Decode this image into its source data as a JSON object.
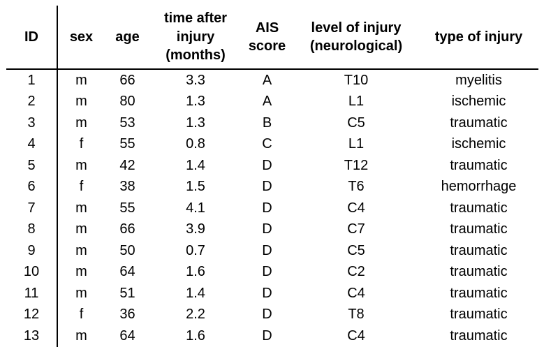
{
  "table": {
    "columns": [
      {
        "key": "id",
        "label": "ID"
      },
      {
        "key": "sex",
        "label": "sex"
      },
      {
        "key": "age",
        "label": "age"
      },
      {
        "key": "time",
        "label": "time after injury (months)"
      },
      {
        "key": "ais",
        "label": "AIS score"
      },
      {
        "key": "level",
        "label": "level of injury (neurological)"
      },
      {
        "key": "type",
        "label": "type of injury"
      }
    ],
    "rows": [
      [
        "1",
        "m",
        "66",
        "3.3",
        "A",
        "T10",
        "myelitis"
      ],
      [
        "2",
        "m",
        "80",
        "1.3",
        "A",
        "L1",
        "ischemic"
      ],
      [
        "3",
        "m",
        "53",
        "1.3",
        "B",
        "C5",
        "traumatic"
      ],
      [
        "4",
        "f",
        "55",
        "0.8",
        "C",
        "L1",
        "ischemic"
      ],
      [
        "5",
        "m",
        "42",
        "1.4",
        "D",
        "T12",
        "traumatic"
      ],
      [
        "6",
        "f",
        "38",
        "1.5",
        "D",
        "T6",
        "hemorrhage"
      ],
      [
        "7",
        "m",
        "55",
        "4.1",
        "D",
        "C4",
        "traumatic"
      ],
      [
        "8",
        "m",
        "66",
        "3.9",
        "D",
        "C7",
        "traumatic"
      ],
      [
        "9",
        "m",
        "50",
        "0.7",
        "D",
        "C5",
        "traumatic"
      ],
      [
        "10",
        "m",
        "64",
        "1.6",
        "D",
        "C2",
        "traumatic"
      ],
      [
        "11",
        "m",
        "51",
        "1.4",
        "D",
        "C4",
        "traumatic"
      ],
      [
        "12",
        "f",
        "36",
        "2.2",
        "D",
        "T8",
        "traumatic"
      ],
      [
        "13",
        "m",
        "64",
        "1.6",
        "D",
        "C4",
        "traumatic"
      ]
    ],
    "colors": {
      "text": "#000000",
      "rule": "#000000",
      "background": "#ffffff"
    }
  }
}
